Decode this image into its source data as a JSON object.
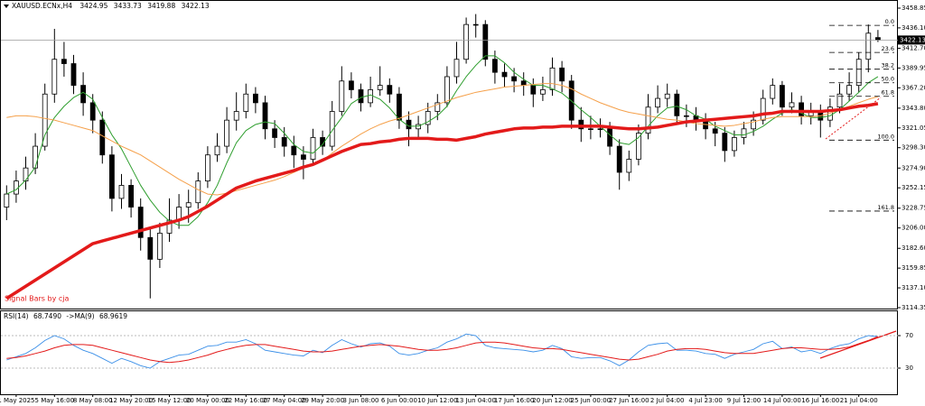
{
  "chart_data": {
    "type": "candlestick",
    "symbol": "XAUUSD.ECNx,H4",
    "categories": [
      null,
      "1 May 2025",
      null,
      null,
      null,
      "5 May 16:00",
      null,
      null,
      null,
      "8 May 08:00",
      null,
      null,
      null,
      "12 May 20:00",
      null,
      null,
      null,
      "15 May 12:00",
      null,
      null,
      null,
      "20 May 00:00",
      null,
      null,
      null,
      "22 May 16:00",
      null,
      null,
      null,
      "27 May 04:00",
      null,
      null,
      null,
      "29 May 20:00",
      null,
      null,
      null,
      "3 Jun 08:00",
      null,
      null,
      null,
      "6 Jun 00:00",
      null,
      null,
      null,
      "10 Jun 12:00",
      null,
      null,
      null,
      "13 Jun 04:00",
      null,
      null,
      null,
      "17 Jun 16:00",
      null,
      null,
      null,
      "20 Jun 12:00",
      null,
      null,
      null,
      "25 Jun 00:00",
      null,
      null,
      null,
      "27 Jun 16:00",
      null,
      null,
      null,
      "2 Jul 04:00",
      null,
      null,
      null,
      "4 Jul 23:00",
      null,
      null,
      null,
      "9 Jul 12:00",
      null,
      null,
      null,
      "14 Jul 00:00",
      null,
      null,
      null,
      "16 Jul 16:00",
      null,
      null,
      null,
      "21 Jul 04:00",
      null,
      null
    ],
    "open": [
      3230,
      3245,
      3260,
      3275,
      3300,
      3360,
      3400,
      3395,
      3370,
      3350,
      3330,
      3290,
      3240,
      3255,
      3230,
      3195,
      3170,
      3200,
      3215,
      3230,
      3235,
      3260,
      3290,
      3300,
      3330,
      3340,
      3360,
      3350,
      3320,
      3310,
      3300,
      3290,
      3285,
      3310,
      3300,
      3340,
      3375,
      3365,
      3350,
      3365,
      3370,
      3360,
      3330,
      3320,
      3325,
      3340,
      3350,
      3380,
      3400,
      3440,
      3440,
      3400,
      3385,
      3380,
      3375,
      3370,
      3360,
      3365,
      3390,
      3375,
      3330,
      3320,
      3320,
      3320,
      3300,
      3270,
      3285,
      3315,
      3345,
      3355,
      3360,
      3335,
      3335,
      3330,
      3320,
      3315,
      3295,
      3310,
      3320,
      3330,
      3355,
      3370,
      3345,
      3350,
      3335,
      3340,
      3330,
      3345,
      3360,
      3370,
      3400,
      3424.95
    ],
    "high": [
      3255,
      3272,
      3288,
      3315,
      3372,
      3435,
      3420,
      3405,
      3385,
      3360,
      3340,
      3300,
      3268,
      3262,
      3240,
      3205,
      3212,
      3240,
      3245,
      3250,
      3270,
      3300,
      3315,
      3345,
      3362,
      3372,
      3368,
      3358,
      3330,
      3322,
      3312,
      3300,
      3320,
      3318,
      3352,
      3392,
      3385,
      3372,
      3380,
      3392,
      3378,
      3368,
      3340,
      3335,
      3350,
      3360,
      3392,
      3420,
      3448,
      3452,
      3445,
      3410,
      3395,
      3390,
      3385,
      3378,
      3380,
      3402,
      3398,
      3382,
      3345,
      3335,
      3332,
      3328,
      3308,
      3295,
      3325,
      3360,
      3370,
      3372,
      3365,
      3348,
      3345,
      3338,
      3328,
      3322,
      3318,
      3328,
      3340,
      3365,
      3378,
      3375,
      3362,
      3358,
      3350,
      3348,
      3355,
      3372,
      3385,
      3408,
      3440,
      3433.73
    ],
    "low": [
      3215,
      3235,
      3250,
      3268,
      3295,
      3350,
      3380,
      3360,
      3335,
      3315,
      3280,
      3225,
      3228,
      3218,
      3180,
      3125,
      3160,
      3190,
      3205,
      3212,
      3228,
      3252,
      3282,
      3292,
      3318,
      3332,
      3338,
      3308,
      3298,
      3288,
      3275,
      3262,
      3278,
      3290,
      3295,
      3335,
      3355,
      3340,
      3345,
      3358,
      3350,
      3320,
      3300,
      3308,
      3315,
      3330,
      3345,
      3372,
      3395,
      3425,
      3392,
      3372,
      3368,
      3362,
      3358,
      3345,
      3352,
      3358,
      3362,
      3320,
      3305,
      3308,
      3310,
      3290,
      3250,
      3260,
      3278,
      3308,
      3338,
      3345,
      3325,
      3322,
      3318,
      3308,
      3300,
      3282,
      3288,
      3302,
      3312,
      3325,
      3348,
      3335,
      3338,
      3325,
      3325,
      3310,
      3322,
      3338,
      3352,
      3362,
      3385,
      3419.88
    ],
    "close": [
      3245,
      3260,
      3275,
      3300,
      3360,
      3400,
      3395,
      3370,
      3350,
      3330,
      3290,
      3240,
      3255,
      3230,
      3195,
      3170,
      3200,
      3215,
      3230,
      3235,
      3260,
      3290,
      3300,
      3330,
      3340,
      3360,
      3350,
      3320,
      3310,
      3300,
      3290,
      3285,
      3310,
      3300,
      3340,
      3375,
      3365,
      3350,
      3365,
      3370,
      3360,
      3330,
      3320,
      3325,
      3340,
      3350,
      3380,
      3400,
      3440,
      3440,
      3400,
      3385,
      3380,
      3375,
      3370,
      3360,
      3365,
      3390,
      3375,
      3330,
      3320,
      3320,
      3320,
      3300,
      3270,
      3285,
      3315,
      3345,
      3355,
      3360,
      3335,
      3335,
      3330,
      3320,
      3315,
      3295,
      3310,
      3320,
      3330,
      3355,
      3370,
      3345,
      3350,
      3335,
      3340,
      3330,
      3345,
      3360,
      3370,
      3400,
      3430,
      3422.13
    ],
    "color": "#000000",
    "ylim": [
      3113.3,
      3466.1
    ],
    "yticks": [
      3458.85,
      {
        "value": 3436.1,
        "label": "3436.10"
      },
      {
        "value": 3412.7,
        "label": "3412.70"
      },
      3389.95,
      {
        "value": 3367.2,
        "label": "3367.20"
      },
      {
        "value": 3343.8,
        "label": "3343.80"
      },
      3321.05,
      {
        "value": 3298.3,
        "label": "3298.30"
      },
      {
        "value": 3274.9,
        "label": "3274.90"
      },
      3252.15,
      3228.75,
      {
        "value": 3206,
        "label": "3206.00"
      },
      {
        "value": 3182.6,
        "label": "3182.60"
      },
      3159.85,
      {
        "value": 3137.1,
        "label": "3137.10"
      },
      3114.35
    ],
    "lines": [
      {
        "color": "#2e9e2e",
        "width": 1,
        "values": [
          3245,
          3250,
          3261,
          3276,
          3313,
          3333,
          3346,
          3356,
          3362,
          3354,
          3333,
          3313,
          3297,
          3276,
          3255,
          3238,
          3224,
          3214,
          3209,
          3209,
          3219,
          3235,
          3255,
          3281,
          3304,
          3318,
          3325,
          3328,
          3326,
          3315,
          3302,
          3294,
          3292,
          3302,
          3318,
          3333,
          3349,
          3356,
          3359,
          3354,
          3344,
          3331,
          3323,
          3323,
          3328,
          3335,
          3346,
          3364,
          3380,
          3393,
          3404,
          3404,
          3396,
          3385,
          3377,
          3370,
          3370,
          3366,
          3361,
          3352,
          3342,
          3333,
          3323,
          3313,
          3304,
          3302,
          3310,
          3323,
          3335,
          3344,
          3346,
          3342,
          3335,
          3331,
          3323,
          3318,
          3313,
          3313,
          3317,
          3323,
          3331,
          3338,
          3342,
          3338,
          3333,
          3333,
          3335,
          3342,
          3352,
          3362,
          3373,
          3380
        ]
      },
      {
        "color": "#f5a04a",
        "width": 1,
        "values": [
          3333,
          3335,
          3335,
          3334,
          3332,
          3330,
          3327,
          3324,
          3321,
          3318,
          3312,
          3306,
          3300,
          3295,
          3290,
          3283,
          3276,
          3269,
          3262,
          3256,
          3250,
          3245,
          3244,
          3246,
          3249,
          3252,
          3255,
          3258,
          3261,
          3265,
          3270,
          3275,
          3280,
          3284,
          3292,
          3300,
          3307,
          3314,
          3320,
          3325,
          3329,
          3332,
          3336,
          3340,
          3344,
          3348,
          3352,
          3356,
          3359,
          3362,
          3364,
          3366,
          3368,
          3369,
          3370,
          3371,
          3372,
          3372,
          3370,
          3366,
          3360,
          3355,
          3350,
          3346,
          3342,
          3339,
          3337,
          3335,
          3333,
          3331,
          3330,
          3328,
          3326,
          3325,
          3324,
          3323,
          3324,
          3326,
          3328,
          3331,
          3333,
          3334,
          3334,
          3334,
          3334,
          3335,
          3338,
          3342,
          3346,
          3350,
          3354,
          3357
        ]
      },
      {
        "color": "#e31a1a",
        "width": 3.5,
        "values": [
          3125,
          3132,
          3139,
          3146,
          3153,
          3160,
          3167,
          3174,
          3181,
          3188,
          3191,
          3194,
          3197,
          3200,
          3203,
          3206,
          3209,
          3212,
          3215,
          3219,
          3225,
          3231,
          3238,
          3245,
          3252,
          3256,
          3260,
          3263,
          3266,
          3269,
          3272,
          3276,
          3279,
          3284,
          3289,
          3294,
          3298,
          3302,
          3303,
          3305,
          3306,
          3308,
          3309,
          3309,
          3309,
          3308,
          3308,
          3307,
          3309,
          3311,
          3314,
          3316,
          3318,
          3320,
          3321,
          3321,
          3322,
          3322,
          3323,
          3323,
          3323,
          3323,
          3323,
          3322,
          3321,
          3320,
          3320,
          3321,
          3322,
          3324,
          3326,
          3328,
          3329,
          3330,
          3331,
          3332,
          3333,
          3334,
          3335,
          3337,
          3338,
          3340,
          3340,
          3340,
          3340,
          3340,
          3341,
          3342,
          3344,
          3346,
          3347,
          3349
        ]
      }
    ],
    "fib": {
      "high": 3439,
      "low": 3307,
      "color": "#000000",
      "levels": [
        {
          "value": 0,
          "label": "0.0"
        },
        23.6,
        38.2,
        {
          "value": 50,
          "label": "50.0"
        },
        61.8,
        {
          "value": 100,
          "label": "100.0"
        },
        161.8
      ]
    },
    "note": "Signal Bars by cja",
    "rsi": {
      "label": "RSI(14)",
      "last_label": "68.7490",
      "ma_label": "->MA(9)",
      "ma_last_label": "68.9619",
      "color": "#3a8fe8",
      "ma_color": "#e31a1a",
      "ylim": [
        0,
        100
      ],
      "yticks": [
        70,
        30
      ],
      "values": [
        40,
        44,
        48,
        55,
        64,
        70,
        66,
        58,
        52,
        48,
        42,
        36,
        42,
        38,
        33,
        30,
        38,
        42,
        46,
        47,
        52,
        57,
        58,
        62,
        62,
        65,
        60,
        52,
        50,
        48,
        46,
        45,
        52,
        49,
        58,
        65,
        60,
        56,
        60,
        61,
        57,
        48,
        46,
        48,
        52,
        55,
        62,
        66,
        72,
        70,
        58,
        55,
        54,
        53,
        52,
        50,
        52,
        58,
        54,
        44,
        42,
        43,
        43,
        39,
        33,
        40,
        50,
        58,
        60,
        61,
        52,
        52,
        51,
        48,
        47,
        42,
        47,
        50,
        53,
        60,
        63,
        54,
        56,
        50,
        52,
        48,
        54,
        58,
        60,
        66,
        70,
        68.749
      ],
      "ma_values": [
        42,
        43,
        45,
        48,
        51,
        55,
        58,
        59,
        59,
        58,
        55,
        52,
        49,
        46,
        43,
        40,
        38,
        37,
        38,
        40,
        43,
        46,
        50,
        53,
        56,
        58,
        59,
        59,
        57,
        55,
        53,
        51,
        50,
        50,
        51,
        53,
        55,
        57,
        58,
        59,
        58,
        57,
        55,
        53,
        52,
        52,
        53,
        55,
        58,
        61,
        62,
        62,
        61,
        59,
        57,
        55,
        54,
        54,
        53,
        51,
        49,
        47,
        45,
        43,
        41,
        40,
        41,
        44,
        47,
        51,
        53,
        54,
        54,
        53,
        51,
        49,
        48,
        48,
        48,
        50,
        52,
        54,
        55,
        55,
        54,
        53,
        53,
        54,
        56,
        60,
        64,
        68.9619
      ]
    }
  }
}
